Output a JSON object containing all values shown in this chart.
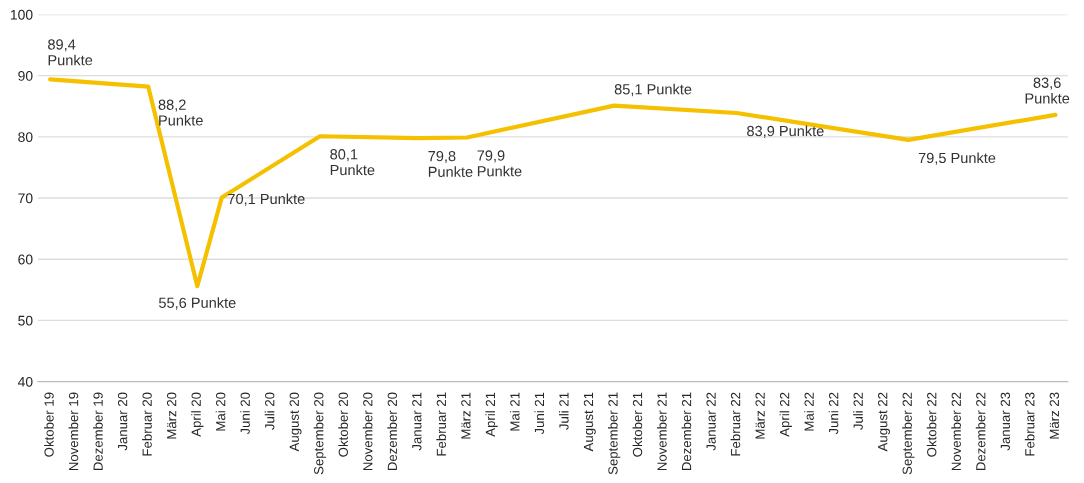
{
  "chart_data": {
    "type": "line",
    "categories": [
      "Oktober 19",
      "November 19",
      "Dezember 19",
      "Januar 20",
      "Februar 20",
      "März 20",
      "April 20",
      "Mai 20",
      "Juni 20",
      "Juli 20",
      "August 20",
      "September 20",
      "Oktober 20",
      "November 20",
      "Dezember 20",
      "Januar 21",
      "Februar 21",
      "März 21",
      "April 21",
      "Mai 21",
      "Juni 21",
      "Juli 21",
      "August 21",
      "September 21",
      "Oktober 21",
      "November 21",
      "Dezember 21",
      "Januar 22",
      "Februar 22",
      "März 22",
      "April 22",
      "Mai 22",
      "Juni 22",
      "Juli 22",
      "August 22",
      "September 22",
      "Oktober 22",
      "November 22",
      "Dezember 22",
      "Januar 23",
      "Februar 23",
      "März 23"
    ],
    "series": [
      {
        "color": "#f5c000",
        "values": [
          89.4,
          null,
          null,
          null,
          88.2,
          null,
          55.6,
          70.1,
          null,
          null,
          null,
          80.1,
          null,
          null,
          null,
          79.8,
          null,
          79.9,
          null,
          null,
          null,
          null,
          null,
          85.1,
          null,
          null,
          null,
          null,
          83.9,
          null,
          null,
          null,
          null,
          null,
          null,
          79.5,
          null,
          null,
          null,
          null,
          null,
          83.6
        ],
        "value_labels": [
          "89,4\nPunkte",
          null,
          null,
          null,
          "88,2\nPunkte",
          null,
          "55,6 Punkte",
          "70,1 Punkte",
          null,
          null,
          null,
          "80,1\nPunkte",
          null,
          null,
          null,
          "79,8\nPunkte",
          null,
          "79,9\nPunkte",
          null,
          null,
          null,
          null,
          null,
          "85,1 Punkte",
          null,
          null,
          null,
          null,
          "83,9 Punkte",
          null,
          null,
          null,
          null,
          null,
          null,
          "79,5 Punkte",
          null,
          null,
          null,
          null,
          null,
          "83,6\nPunkte"
        ]
      }
    ],
    "ylim": [
      40,
      100
    ],
    "yticks": [
      40,
      50,
      60,
      70,
      80,
      90,
      100
    ],
    "grid": "y",
    "legend": false,
    "marker": "none",
    "line_style": "solid"
  }
}
